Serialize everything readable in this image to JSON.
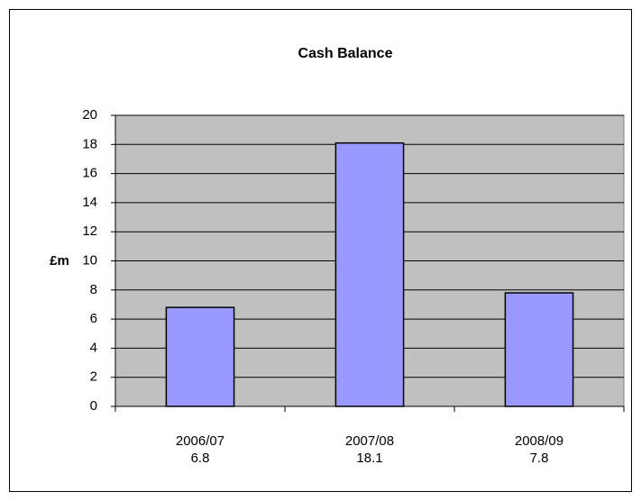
{
  "chart_data": {
    "type": "bar",
    "title": "Cash Balance",
    "y_label": "£m",
    "categories": [
      "2006/07",
      "2007/08",
      "2008/09"
    ],
    "values": [
      6.8,
      18.1,
      7.8
    ],
    "value_labels": [
      "6.8",
      "18.1",
      "7.8"
    ],
    "color": "#9999ff",
    "ylim": [
      0,
      20
    ],
    "yticks": [
      0,
      2,
      4,
      6,
      8,
      10,
      12,
      14,
      16,
      18,
      20
    ],
    "grid": true
  }
}
